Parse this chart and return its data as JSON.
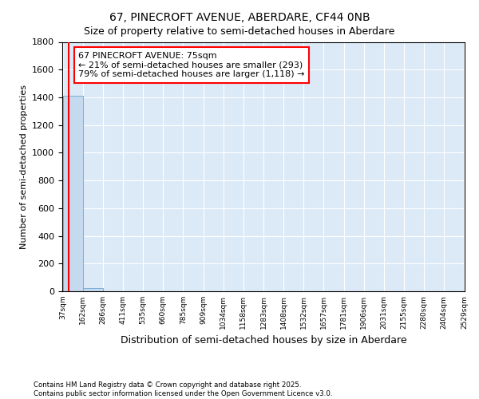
{
  "title1": "67, PINECROFT AVENUE, ABERDARE, CF44 0NB",
  "title2": "Size of property relative to semi-detached houses in Aberdare",
  "xlabel": "Distribution of semi-detached houses by size in Aberdare",
  "ylabel": "Number of semi-detached properties",
  "bin_edges": [
    37,
    162,
    286,
    411,
    535,
    660,
    785,
    909,
    1034,
    1158,
    1283,
    1408,
    1532,
    1657,
    1781,
    1906,
    2031,
    2155,
    2280,
    2404,
    2529
  ],
  "bin_labels": [
    "37sqm",
    "162sqm",
    "286sqm",
    "411sqm",
    "535sqm",
    "660sqm",
    "785sqm",
    "909sqm",
    "1034sqm",
    "1158sqm",
    "1283sqm",
    "1408sqm",
    "1532sqm",
    "1657sqm",
    "1781sqm",
    "1906sqm",
    "2031sqm",
    "2155sqm",
    "2280sqm",
    "2404sqm",
    "2529sqm"
  ],
  "bar_heights": [
    1411,
    25,
    0,
    0,
    0,
    0,
    0,
    0,
    0,
    0,
    0,
    0,
    0,
    0,
    0,
    0,
    0,
    0,
    0,
    0
  ],
  "bar_color": "#c5d9ef",
  "bar_edge_color": "#7aafd4",
  "annotation_line1": "67 PINECROFT AVENUE: 75sqm",
  "annotation_line2": "← 21% of semi-detached houses are smaller (293)",
  "annotation_line3": "79% of semi-detached houses are larger (1,118) →",
  "annotation_box_color": "white",
  "annotation_box_edge": "red",
  "ylim": [
    0,
    1800
  ],
  "yticks": [
    0,
    200,
    400,
    600,
    800,
    1000,
    1200,
    1400,
    1600,
    1800
  ],
  "background_color": "#dce9f7",
  "grid_color": "white",
  "footer": "Contains HM Land Registry data © Crown copyright and database right 2025.\nContains public sector information licensed under the Open Government Licence v3.0.",
  "property_size_sqm": 75,
  "red_line_color": "red"
}
